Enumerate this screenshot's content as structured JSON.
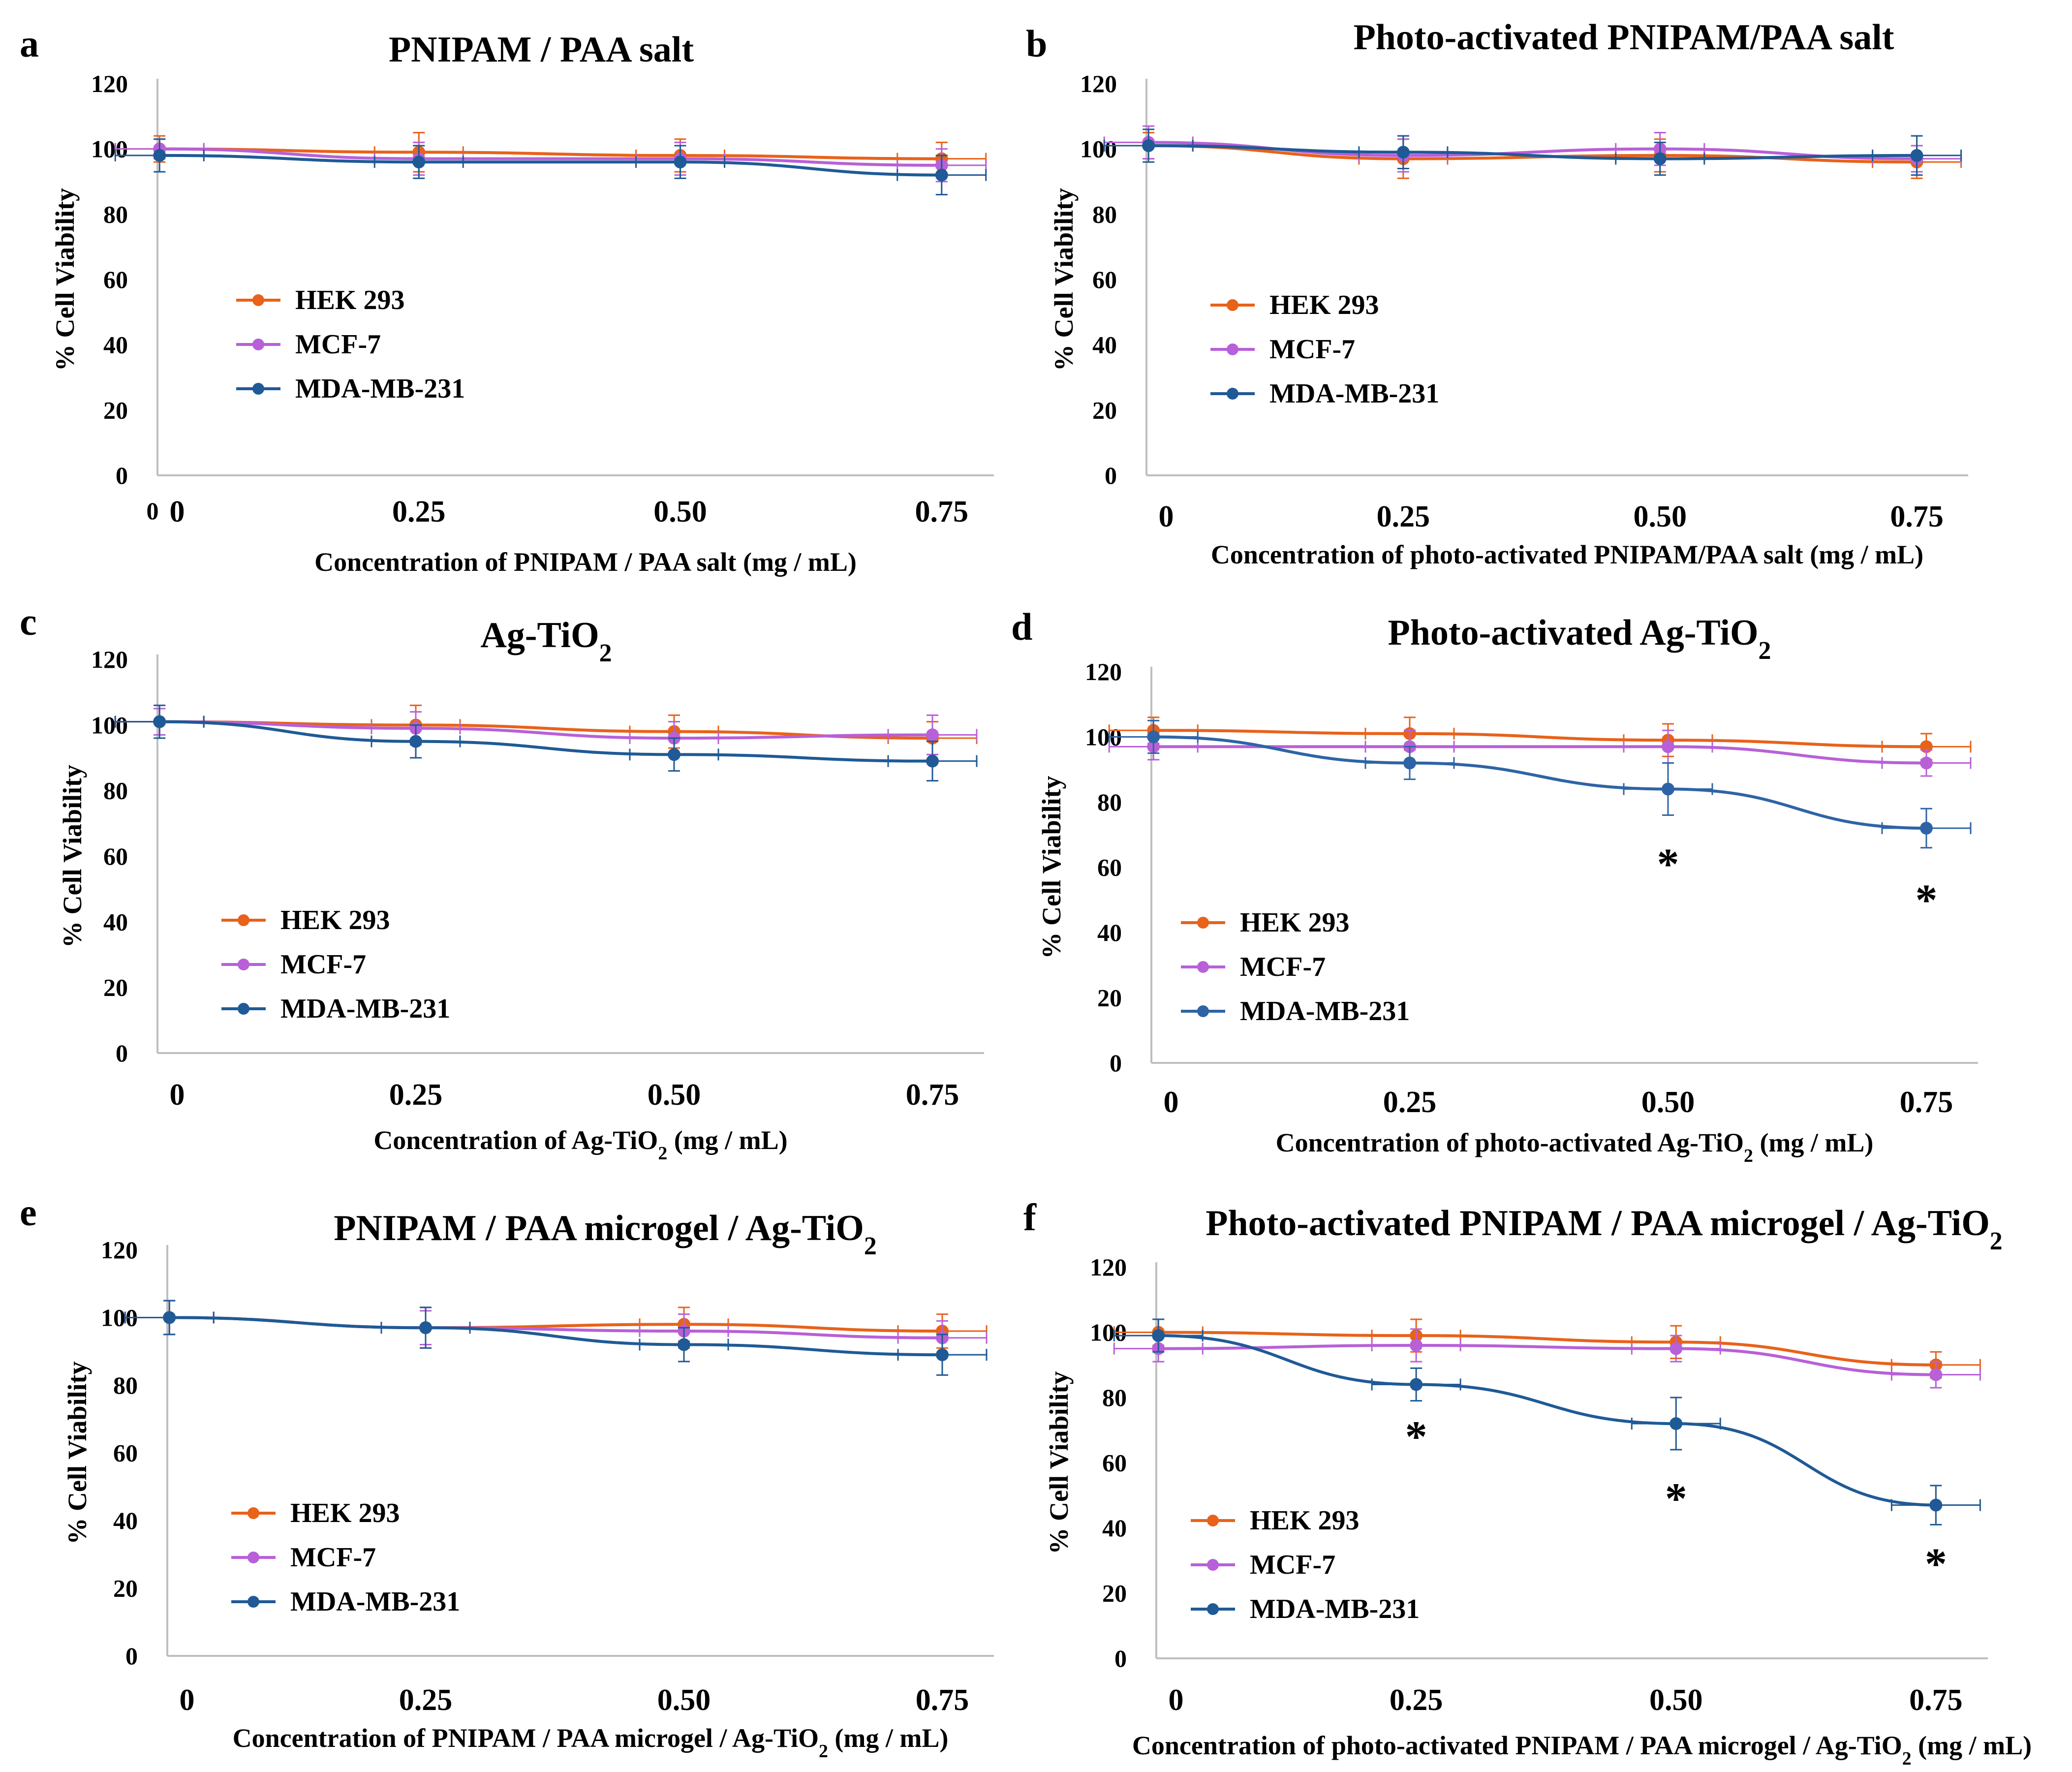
{
  "chart_data": [
    {
      "type": "line",
      "panel": "a",
      "title": "PNIPAM / PAA salt",
      "xlabel": "Concentration of PNIPAM / PAA salt (mg / mL)",
      "ylabel": "% Cell Viability",
      "ylim": [
        0,
        120
      ],
      "yticks": [
        "0",
        "20",
        "40",
        "60",
        "80",
        "100",
        "120"
      ],
      "xticks": [
        "0",
        "0.25",
        "0.50",
        "0.75"
      ],
      "x_extra_label": "0",
      "x": [
        0,
        0.25,
        0.5,
        0.75
      ],
      "series": [
        {
          "name": "HEK 293",
          "color": "#e8621a",
          "values": [
            100,
            99,
            98,
            97
          ],
          "err": [
            4,
            6,
            5,
            5
          ]
        },
        {
          "name": "MCF-7",
          "color": "#b860d8",
          "values": [
            100,
            97,
            97,
            95
          ],
          "err": [
            3,
            5,
            5,
            5
          ]
        },
        {
          "name": "MDA-MB-231",
          "color": "#1f5a96",
          "values": [
            98,
            96,
            96,
            92
          ],
          "err": [
            5,
            5,
            5,
            6
          ]
        }
      ],
      "annotations": []
    },
    {
      "type": "line",
      "panel": "b",
      "title": "Photo-activated PNIPAM/PAA salt",
      "xlabel": "Concentration of photo-activated PNIPAM/PAA salt (mg / mL)",
      "ylabel": "% Cell Viability",
      "ylim": [
        0,
        120
      ],
      "yticks": [
        "0",
        "20",
        "40",
        "60",
        "80",
        "100",
        "120"
      ],
      "xticks": [
        "0",
        "0.25",
        "0.50",
        "0.75"
      ],
      "x": [
        0,
        0.25,
        0.5,
        0.75
      ],
      "series": [
        {
          "name": "HEK 293",
          "color": "#e8621a",
          "values": [
            101,
            97,
            98,
            96
          ],
          "err": [
            4,
            6,
            5,
            5
          ]
        },
        {
          "name": "MCF-7",
          "color": "#b860d8",
          "values": [
            102,
            98,
            100,
            97
          ],
          "err": [
            5,
            5,
            5,
            4
          ]
        },
        {
          "name": "MDA-MB-231",
          "color": "#1f5a96",
          "values": [
            101,
            99,
            97,
            98
          ],
          "err": [
            5,
            5,
            5,
            6
          ]
        }
      ],
      "annotations": []
    },
    {
      "type": "line",
      "panel": "c",
      "title": "Ag-TiO",
      "title_subscript": "2",
      "xlabel": "Concentration of Ag-TiO",
      "xlabel_subscript": "2",
      "xlabel_suffix": " (mg / mL)",
      "ylabel": "% Cell Viability",
      "ylim": [
        0,
        120
      ],
      "yticks": [
        "0",
        "20",
        "40",
        "60",
        "80",
        "100",
        "120"
      ],
      "xticks": [
        "0",
        "0.25",
        "0.50",
        "0.75"
      ],
      "x": [
        0,
        0.25,
        0.5,
        0.75
      ],
      "series": [
        {
          "name": "HEK 293",
          "color": "#e8621a",
          "values": [
            101,
            100,
            98,
            96
          ],
          "err": [
            4,
            6,
            5,
            5
          ]
        },
        {
          "name": "MCF-7",
          "color": "#b860d8",
          "values": [
            101,
            99,
            96,
            97
          ],
          "err": [
            4,
            5,
            5,
            6
          ]
        },
        {
          "name": "MDA-MB-231",
          "color": "#1f5a96",
          "values": [
            101,
            95,
            91,
            89
          ],
          "err": [
            5,
            5,
            5,
            6
          ]
        }
      ],
      "annotations": []
    },
    {
      "type": "line",
      "panel": "d",
      "title": "Photo-activated Ag-TiO",
      "title_subscript": "2",
      "xlabel": "Concentration of photo-activated Ag-TiO",
      "xlabel_subscript": "2",
      "xlabel_suffix": " (mg / mL)",
      "ylabel": "% Cell Viability",
      "ylim": [
        0,
        120
      ],
      "yticks": [
        "0",
        "20",
        "40",
        "60",
        "80",
        "100",
        "120"
      ],
      "xticks": [
        "0",
        "0.25",
        "0.50",
        "0.75"
      ],
      "x": [
        0,
        0.25,
        0.5,
        0.75
      ],
      "series": [
        {
          "name": "HEK 293",
          "color": "#e8621a",
          "values": [
            102,
            101,
            99,
            97
          ],
          "err": [
            4,
            5,
            5,
            4
          ]
        },
        {
          "name": "MCF-7",
          "color": "#b860d8",
          "values": [
            97,
            97,
            97,
            92
          ],
          "err": [
            4,
            5,
            5,
            4
          ]
        },
        {
          "name": "MDA-MB-231",
          "color": "#2e64a6",
          "values": [
            100,
            92,
            84,
            72
          ],
          "err": [
            5,
            5,
            8,
            6
          ]
        }
      ],
      "annotations": [
        {
          "x": 0.5,
          "y": 61,
          "text": "*"
        },
        {
          "x": 0.75,
          "y": 50,
          "text": "*"
        }
      ]
    },
    {
      "type": "line",
      "panel": "e",
      "title": "PNIPAM / PAA microgel / Ag-TiO",
      "title_subscript": "2",
      "xlabel": "Concentration of PNIPAM / PAA microgel / Ag-TiO",
      "xlabel_subscript": "2",
      "xlabel_suffix": " (mg / mL)",
      "ylabel": "% Cell Viability",
      "ylim": [
        0,
        120
      ],
      "yticks": [
        "0",
        "20",
        "40",
        "60",
        "80",
        "100",
        "120"
      ],
      "xticks": [
        "0",
        "0.25",
        "0.50",
        "0.75"
      ],
      "x": [
        0,
        0.25,
        0.5,
        0.75
      ],
      "series": [
        {
          "name": "HEK 293",
          "color": "#e8621a",
          "values": [
            100,
            97,
            98,
            96
          ],
          "err": [
            5,
            6,
            5,
            5
          ]
        },
        {
          "name": "MCF-7",
          "color": "#b860d8",
          "values": [
            100,
            97,
            96,
            94
          ],
          "err": [
            5,
            5,
            5,
            5
          ]
        },
        {
          "name": "MDA-MB-231",
          "color": "#1f5a96",
          "values": [
            100,
            97,
            92,
            89
          ],
          "err": [
            5,
            6,
            5,
            6
          ]
        }
      ],
      "annotations": []
    },
    {
      "type": "line",
      "panel": "f",
      "title": "Photo-activated PNIPAM / PAA microgel / Ag-TiO",
      "title_subscript": "2",
      "xlabel": "Concentration of photo-activated PNIPAM / PAA microgel / Ag-TiO",
      "xlabel_subscript": "2",
      "xlabel_suffix": " (mg / mL)",
      "ylabel": "% Cell Viability",
      "ylim": [
        0,
        120
      ],
      "yticks": [
        "0",
        "20",
        "40",
        "60",
        "80",
        "100",
        "120"
      ],
      "xticks": [
        "0",
        "0.25",
        "0.50",
        "0.75"
      ],
      "x": [
        0,
        0.25,
        0.5,
        0.75
      ],
      "series": [
        {
          "name": "HEK 293",
          "color": "#e8621a",
          "values": [
            100,
            99,
            97,
            90
          ],
          "err": [
            4,
            5,
            5,
            4
          ]
        },
        {
          "name": "MCF-7",
          "color": "#b860d8",
          "values": [
            95,
            96,
            95,
            87
          ],
          "err": [
            4,
            5,
            4,
            4
          ]
        },
        {
          "name": "MDA-MB-231",
          "color": "#1f5a96",
          "values": [
            99,
            84,
            72,
            47
          ],
          "err": [
            5,
            5,
            8,
            6
          ]
        }
      ],
      "annotations": [
        {
          "x": 0.25,
          "y": 68,
          "text": "*"
        },
        {
          "x": 0.5,
          "y": 49,
          "text": "*"
        },
        {
          "x": 0.75,
          "y": 29,
          "text": "*"
        }
      ]
    }
  ]
}
